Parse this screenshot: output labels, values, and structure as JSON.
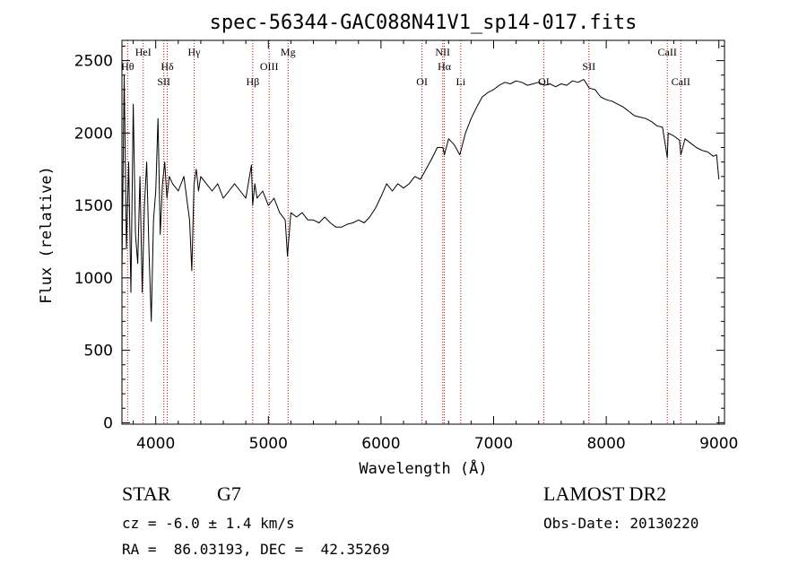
{
  "chart_data": {
    "type": "line",
    "title": "spec-56344-GAC088N41V1_sp14-017.fits",
    "xlabel": "Wavelength (Å)",
    "ylabel": "Flux (relative)",
    "xlim": [
      3700,
      9050
    ],
    "ylim": [
      -10,
      2640
    ],
    "xticks": [
      "4000",
      "5000",
      "6000",
      "7000",
      "8000",
      "9000"
    ],
    "yticks": [
      "0",
      "500",
      "1000",
      "1500",
      "2000",
      "2500"
    ],
    "grid": false,
    "series": [
      {
        "x": [
          3700,
          3720,
          3740,
          3760,
          3780,
          3800,
          3820,
          3840,
          3860,
          3880,
          3900,
          3920,
          3940,
          3960,
          3980,
          4000,
          4020,
          4040,
          4060,
          4080,
          4100,
          4120,
          4150,
          4200,
          4250,
          4300,
          4320,
          4340,
          4360,
          4380,
          4400,
          4450,
          4500,
          4550,
          4600,
          4650,
          4700,
          4750,
          4800,
          4850,
          4861,
          4880,
          4900,
          4950,
          5000,
          5050,
          5100,
          5150,
          5170,
          5200,
          5250,
          5300,
          5350,
          5400,
          5450,
          5500,
          5550,
          5600,
          5650,
          5700,
          5750,
          5800,
          5850,
          5900,
          5950,
          6000,
          6050,
          6100,
          6150,
          6200,
          6250,
          6300,
          6350,
          6400,
          6450,
          6500,
          6550,
          6563,
          6600,
          6650,
          6700,
          6750,
          6800,
          6850,
          6900,
          6950,
          7000,
          7050,
          7100,
          7150,
          7200,
          7250,
          7300,
          7350,
          7400,
          7450,
          7500,
          7550,
          7600,
          7650,
          7700,
          7750,
          7800,
          7850,
          7900,
          7950,
          8000,
          8050,
          8100,
          8150,
          8200,
          8250,
          8300,
          8350,
          8400,
          8450,
          8500,
          8542,
          8550,
          8600,
          8650,
          8662,
          8700,
          8750,
          8800,
          8850,
          8900,
          8950,
          8980,
          9000
        ],
        "y": [
          1050,
          2400,
          1200,
          1800,
          900,
          2200,
          1300,
          1100,
          1700,
          900,
          1500,
          1800,
          1200,
          700,
          1400,
          1600,
          2100,
          1300,
          1650,
          1800,
          1550,
          1700,
          1650,
          1600,
          1700,
          1400,
          1050,
          1650,
          1750,
          1600,
          1700,
          1650,
          1600,
          1650,
          1550,
          1600,
          1650,
          1600,
          1550,
          1780,
          1500,
          1650,
          1550,
          1600,
          1500,
          1550,
          1450,
          1400,
          1150,
          1450,
          1420,
          1450,
          1400,
          1400,
          1380,
          1420,
          1380,
          1350,
          1350,
          1370,
          1380,
          1400,
          1380,
          1420,
          1480,
          1560,
          1650,
          1600,
          1650,
          1620,
          1650,
          1700,
          1680,
          1750,
          1820,
          1900,
          1900,
          1850,
          1960,
          1920,
          1850,
          2000,
          2100,
          2180,
          2250,
          2280,
          2300,
          2330,
          2350,
          2340,
          2360,
          2350,
          2330,
          2340,
          2350,
          2330,
          2340,
          2320,
          2340,
          2330,
          2360,
          2350,
          2370,
          2310,
          2300,
          2250,
          2230,
          2220,
          2200,
          2180,
          2150,
          2120,
          2110,
          2100,
          2080,
          2050,
          2040,
          1830,
          2000,
          1980,
          1950,
          1850,
          1960,
          1930,
          1900,
          1880,
          1870,
          1840,
          1850,
          1680
        ]
      }
    ],
    "lines": [
      {
        "wl": 3750,
        "label": "Hθ",
        "row": 2
      },
      {
        "wl": 3889,
        "label": "HeI",
        "row": 1
      },
      {
        "wl": 4072,
        "label": "SII",
        "row": 3
      },
      {
        "wl": 4102,
        "label": "Hδ",
        "row": 2
      },
      {
        "wl": 4341,
        "label": "Hγ",
        "row": 1
      },
      {
        "wl": 4861,
        "label": "Hβ",
        "row": 3
      },
      {
        "wl": 5007,
        "label": "OIII",
        "row": 2
      },
      {
        "wl": 5175,
        "label": "Mg",
        "row": 1
      },
      {
        "wl": 6364,
        "label": "OI",
        "row": 3
      },
      {
        "wl": 6548,
        "label": "NII",
        "row": 1
      },
      {
        "wl": 6563,
        "label": "Hα",
        "row": 2
      },
      {
        "wl": 6708,
        "label": "Li",
        "row": 3
      },
      {
        "wl": 7445,
        "label": "OI",
        "row": 3
      },
      {
        "wl": 7846,
        "label": "SII",
        "row": 2
      },
      {
        "wl": 8542,
        "label": "CaII",
        "row": 1
      },
      {
        "wl": 8662,
        "label": "CaII",
        "row": 3
      }
    ],
    "colors": {
      "spectrum": "#000000",
      "line_markers": "#cc0000",
      "axes": "#000000"
    }
  },
  "footer": {
    "object_class": "STAR",
    "subclass": "G7",
    "survey": "LAMOST DR2",
    "redshift": "cz = -6.0 ± 1.4 km/s",
    "obs_date": "Obs-Date: 20130220",
    "coords": "RA =  86.03193, DEC =  42.35269"
  }
}
